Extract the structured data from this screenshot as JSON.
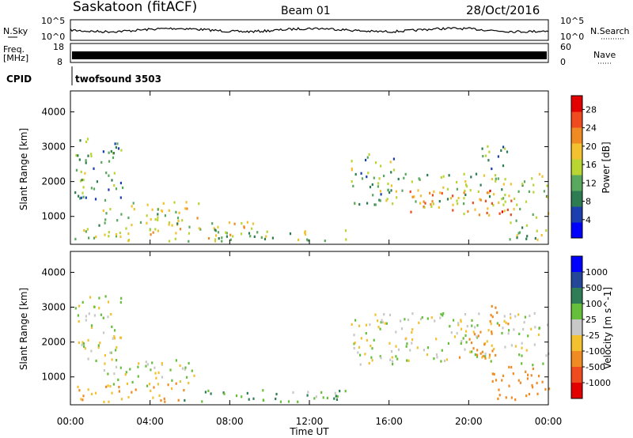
{
  "header": {
    "station": "Saskatoon (fitACF)",
    "beam": "Beam 01",
    "date": "28/Oct/2016"
  },
  "left_labels": {
    "nsky": "N.Sky",
    "freq_line1": "Freq.",
    "freq_line2": "[MHz]",
    "cpid": "CPID"
  },
  "right_labels": {
    "nsearch": "N.Search",
    "nave": "Nave"
  },
  "noise_axis": {
    "top": "10^5",
    "bottom": "10^0",
    "top_right": "10^5",
    "bottom_right": "10^0"
  },
  "freq_axis": {
    "left_ticks": [
      "18",
      "8"
    ],
    "right_ticks": [
      "60",
      "0"
    ]
  },
  "cpid_text": "twofsound  3503",
  "colors": {
    "power": [
      "#0000ff",
      "#1b3fae",
      "#2e7d52",
      "#58a85e",
      "#b8d532",
      "#f2c12d",
      "#f08a22",
      "#ef4b1f",
      "#e30000"
    ],
    "velocity": [
      "#0000ff",
      "#24479a",
      "#2f7d57",
      "#66bf3a",
      "#c8c8c8",
      "#f2c12d",
      "#f08a22",
      "#ef4b1f",
      "#e30000"
    ]
  },
  "chart_data": [
    {
      "type": "heatmap",
      "title": "",
      "xlabel": "",
      "ylabel": "Slant Range [km]",
      "x_ticks": [
        "00:00",
        "04:00",
        "08:00",
        "12:00",
        "16:00",
        "20:00",
        "00:00"
      ],
      "y_ticks": [
        "1000",
        "2000",
        "3000",
        "4000"
      ],
      "ylim": [
        200,
        4600
      ],
      "colorbar": {
        "label": "Power [dB]",
        "ticks": [
          "4",
          "8",
          "12",
          "16",
          "20",
          "24",
          "28"
        ],
        "range": [
          0,
          31
        ]
      },
      "regions": [
        {
          "t0": 0.2,
          "t1": 2.6,
          "r0": 1400,
          "r1": 3300,
          "mean": 10
        },
        {
          "t0": 0.2,
          "t1": 0.8,
          "r0": 1900,
          "r1": 2300,
          "mean": 12
        },
        {
          "t0": 1.5,
          "t1": 6.5,
          "r0": 700,
          "r1": 1450,
          "mean": 15
        },
        {
          "t0": 0.2,
          "t1": 9.5,
          "r0": 250,
          "r1": 800,
          "mean": 16
        },
        {
          "t0": 7.0,
          "t1": 14.0,
          "r0": 250,
          "r1": 600,
          "mean": 14
        },
        {
          "t0": 14.0,
          "t1": 16.3,
          "r0": 1300,
          "r1": 2800,
          "mean": 12
        },
        {
          "t0": 15.5,
          "t1": 24.0,
          "r0": 1300,
          "r1": 2200,
          "mean": 14
        },
        {
          "t0": 17.0,
          "t1": 22.5,
          "r0": 1000,
          "r1": 1700,
          "mean": 22
        },
        {
          "t0": 20.5,
          "t1": 22.0,
          "r0": 2200,
          "r1": 3000,
          "mean": 10
        },
        {
          "t0": 22.0,
          "t1": 24.0,
          "r0": 250,
          "r1": 1200,
          "mean": 14
        }
      ]
    },
    {
      "type": "heatmap",
      "title": "",
      "xlabel": "Time UT",
      "ylabel": "Slant Range [km]",
      "x_ticks": [
        "00:00",
        "04:00",
        "08:00",
        "12:00",
        "16:00",
        "20:00",
        "00:00"
      ],
      "y_ticks": [
        "1000",
        "2000",
        "3000",
        "4000"
      ],
      "ylim": [
        200,
        4600
      ],
      "colorbar": {
        "label": "Velocity [m s^-1]",
        "ticks": [
          "1000",
          "500",
          "100",
          "25",
          "-25",
          "-100",
          "-500",
          "-1000"
        ]
      },
      "regions": [
        {
          "t0": 0.2,
          "t1": 2.6,
          "r0": 1400,
          "r1": 3300,
          "mean": 0
        },
        {
          "t0": 1.5,
          "t1": 6.5,
          "r0": 700,
          "r1": 1450,
          "mean": 0
        },
        {
          "t0": 0.2,
          "t1": 6.0,
          "r0": 250,
          "r1": 800,
          "mean": -100
        },
        {
          "t0": 5.0,
          "t1": 14.0,
          "r0": 250,
          "r1": 600,
          "mean": 80
        },
        {
          "t0": 14.0,
          "t1": 24.0,
          "r0": 1300,
          "r1": 2800,
          "mean": 0
        },
        {
          "t0": 19.5,
          "t1": 21.5,
          "r0": 1500,
          "r1": 2200,
          "mean": -400
        },
        {
          "t0": 20.5,
          "t1": 22.0,
          "r0": 2200,
          "r1": 3000,
          "mean": -150
        },
        {
          "t0": 21.0,
          "t1": 24.0,
          "r0": 300,
          "r1": 1300,
          "mean": -200
        }
      ]
    }
  ]
}
